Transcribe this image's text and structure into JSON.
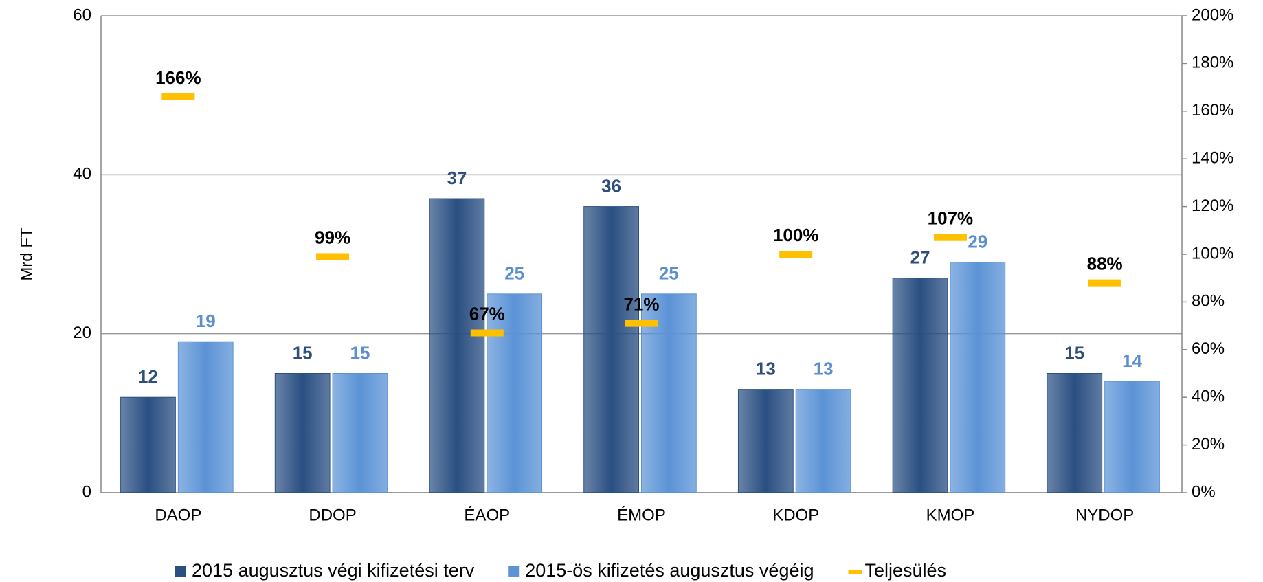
{
  "chart_data": {
    "type": "bar_line",
    "y_label": "Mrd FT",
    "categories": [
      "DAOP",
      "DDOP",
      "ÉAOP",
      "ÉMOP",
      "KDOP",
      "KMOP",
      "NYDOP"
    ],
    "series": [
      {
        "name": "2015 augusztus végi kifizetési terv",
        "color": "#2a4f82",
        "values": [
          12,
          15,
          37,
          36,
          13,
          27,
          15
        ]
      },
      {
        "name": "2015-ös kifizetés augusztus végéig",
        "color": "#5b93d6",
        "values": [
          19,
          15,
          25,
          25,
          13,
          29,
          14
        ]
      },
      {
        "name": "Teljesülés",
        "color": "#ffc000",
        "axis": "y2",
        "values": [
          166,
          99,
          67,
          71,
          100,
          107,
          88
        ],
        "value_labels": [
          "166%",
          "99%",
          "67%",
          "71%",
          "100%",
          "107%",
          "88%"
        ]
      }
    ],
    "ylim": [
      0,
      60
    ],
    "yticks": [
      0,
      20,
      40,
      60
    ],
    "y2lim": [
      0,
      200
    ],
    "y2ticks": [
      {
        "value": 0,
        "label": "0%"
      },
      {
        "value": 20,
        "label": "20%"
      },
      {
        "value": 40,
        "label": "40%"
      },
      {
        "value": 60,
        "label": "60%"
      },
      {
        "value": 80,
        "label": "80%"
      },
      {
        "value": 100,
        "label": "100%"
      },
      {
        "value": 120,
        "label": "120%"
      },
      {
        "value": 140,
        "label": "140%"
      },
      {
        "value": 160,
        "label": "160%"
      },
      {
        "value": 180,
        "label": "180%"
      },
      {
        "value": 200,
        "label": "200%"
      }
    ],
    "grid": true,
    "legend": "bottom"
  }
}
